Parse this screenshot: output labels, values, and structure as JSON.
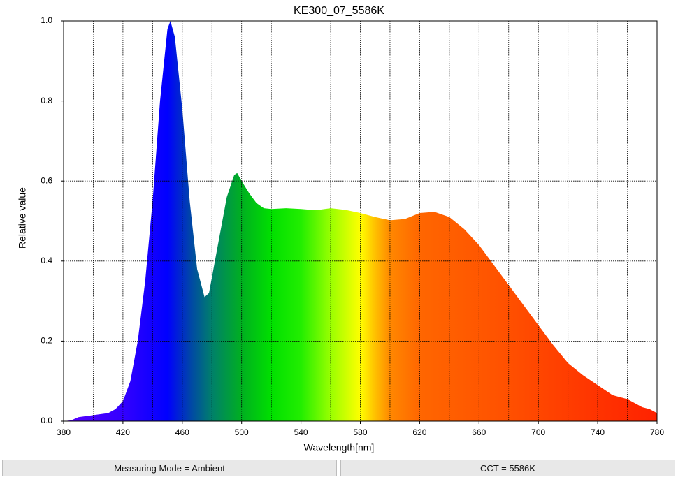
{
  "chart_data": {
    "type": "area",
    "title": "KE300_07_5586K",
    "x_label": "Wavelength[nm]",
    "y_label": "Relative value",
    "x": [
      380,
      385,
      390,
      400,
      410,
      415,
      420,
      425,
      430,
      435,
      440,
      445,
      450,
      452,
      455,
      460,
      465,
      470,
      475,
      478,
      480,
      485,
      490,
      495,
      497,
      500,
      505,
      510,
      515,
      520,
      530,
      540,
      550,
      560,
      570,
      580,
      590,
      600,
      610,
      620,
      630,
      640,
      650,
      660,
      670,
      680,
      690,
      700,
      710,
      720,
      730,
      740,
      750,
      760,
      770,
      775,
      780
    ],
    "y": [
      0,
      0.002,
      0.01,
      0.015,
      0.02,
      0.03,
      0.05,
      0.1,
      0.2,
      0.35,
      0.55,
      0.8,
      0.98,
      1.0,
      0.96,
      0.78,
      0.55,
      0.38,
      0.31,
      0.32,
      0.36,
      0.46,
      0.56,
      0.615,
      0.62,
      0.6,
      0.57,
      0.545,
      0.532,
      0.53,
      0.532,
      0.53,
      0.527,
      0.532,
      0.528,
      0.52,
      0.51,
      0.502,
      0.505,
      0.52,
      0.523,
      0.51,
      0.48,
      0.44,
      0.39,
      0.34,
      0.29,
      0.24,
      0.19,
      0.145,
      0.115,
      0.09,
      0.065,
      0.055,
      0.035,
      0.03,
      0.02
    ],
    "xlim": [
      380,
      780
    ],
    "ylim": [
      0,
      1
    ],
    "xticks": [
      380,
      420,
      460,
      500,
      540,
      580,
      620,
      660,
      700,
      740,
      780
    ],
    "xminor": [
      400,
      440,
      480,
      520,
      560,
      600,
      640,
      680,
      720,
      760
    ],
    "yticks": [
      {
        "value": 0,
        "label": "0.0"
      },
      0.2,
      0.4,
      0.6,
      0.8,
      {
        "value": 1,
        "label": "1.0"
      }
    ],
    "grid": true,
    "color_stops": [
      {
        "x": 380,
        "color": "#5a00ff"
      },
      {
        "x": 420,
        "color": "#3300ff"
      },
      {
        "x": 450,
        "color": "#0000ff"
      },
      {
        "x": 465,
        "color": "#0044aa"
      },
      {
        "x": 480,
        "color": "#00806a"
      },
      {
        "x": 500,
        "color": "#00b020"
      },
      {
        "x": 520,
        "color": "#00e000"
      },
      {
        "x": 540,
        "color": "#22ee00"
      },
      {
        "x": 560,
        "color": "#99ff00"
      },
      {
        "x": 580,
        "color": "#ffff00"
      },
      {
        "x": 590,
        "color": "#ffc000"
      },
      {
        "x": 600,
        "color": "#ff8800"
      },
      {
        "x": 620,
        "color": "#ff6600"
      },
      {
        "x": 680,
        "color": "#ff5000"
      },
      {
        "x": 740,
        "color": "#ff3300"
      },
      {
        "x": 780,
        "color": "#ff2200"
      }
    ]
  },
  "status": {
    "mode": "Measuring Mode = Ambient",
    "cct": "CCT = 5586K"
  }
}
